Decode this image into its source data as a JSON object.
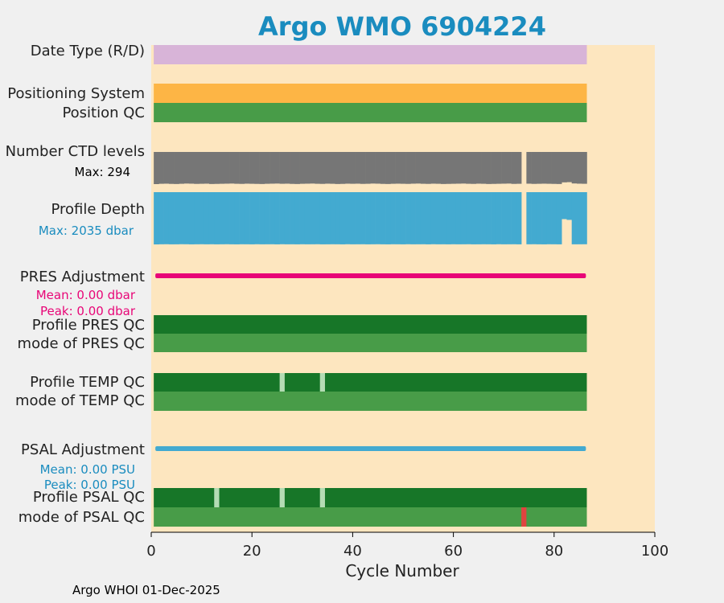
{
  "title": "Argo WMO 6904224",
  "footer": "Argo WHOI 01-Dec-2025",
  "colors": {
    "background": "#f0f0f0",
    "plot_background": "#fde6bf",
    "title": "#1a8cbf",
    "date_type": "#d8b4d8",
    "positioning": "#fdb545",
    "qc_good_dark": "#177628",
    "qc_mode": "#489c48",
    "qc_light": "#b4dcb4",
    "qc_bad": "#e0443f",
    "ctd_levels": "#767676",
    "profile_depth": "#43aad0",
    "pres_adjustment": "#e80677",
    "psal_adjustment": "#43aad0",
    "annotation_depth": "#1a8cbf",
    "annotation_pres": "#e80677",
    "annotation_psal": "#1a8cbf"
  },
  "chart_data": {
    "type": "bar",
    "xlabel": "Cycle Number",
    "xlim": [
      0,
      100
    ],
    "xticks": [
      "0",
      "20",
      "40",
      "60",
      "80",
      "100"
    ],
    "cycles": [
      1,
      86
    ],
    "rows": [
      {
        "label": "Date Type (R/D)",
        "kind": "band",
        "color": "date_type"
      },
      {
        "label": "Positioning System",
        "kind": "band",
        "color": "positioning"
      },
      {
        "label": "Position QC",
        "kind": "band",
        "color": "qc_mode"
      },
      {
        "label": "Number CTD levels",
        "kind": "levels",
        "annotation": "Max: 294",
        "max": 294
      },
      {
        "label": "Profile Depth",
        "kind": "depth",
        "annotation": "Max: 2035 dbar",
        "max": 2035
      },
      {
        "label": "PRES Adjustment",
        "kind": "line",
        "color": "pres_adjustment",
        "mean": "Mean: 0.00 dbar",
        "peak": "Peak: 0.00 dbar"
      },
      {
        "label": "Profile PRES QC",
        "kind": "band",
        "color": "qc_good_dark"
      },
      {
        "label": "mode of PRES QC",
        "kind": "band",
        "color": "qc_mode"
      },
      {
        "label": "Profile TEMP QC",
        "kind": "qcband",
        "color": "qc_good_dark",
        "light_cycles": [
          26,
          34
        ]
      },
      {
        "label": "mode of TEMP QC",
        "kind": "band",
        "color": "qc_mode"
      },
      {
        "label": "PSAL Adjustment",
        "kind": "line",
        "color": "psal_adjustment",
        "mean": "Mean: 0.00 PSU",
        "peak": "Peak: 0.00 PSU"
      },
      {
        "label": "Profile PSAL QC",
        "kind": "qcband",
        "color": "qc_good_dark",
        "light_cycles": [
          13,
          26,
          34
        ]
      },
      {
        "label": "mode of PSAL QC",
        "kind": "qcband",
        "color": "qc_mode",
        "bad_cycles": [
          74
        ]
      }
    ],
    "ctd_levels": [
      294,
      291,
      290,
      292,
      293,
      291,
      289,
      290,
      292,
      291,
      290,
      293,
      292,
      291,
      290,
      289,
      291,
      292,
      290,
      291,
      292,
      293,
      291,
      290,
      289,
      291,
      290,
      292,
      293,
      291,
      290,
      289,
      291,
      292,
      290,
      291,
      293,
      292,
      290,
      291,
      290,
      292,
      291,
      289,
      290,
      292,
      293,
      291,
      290,
      291,
      292,
      290,
      289,
      291,
      292,
      290,
      291,
      293,
      292,
      291,
      290,
      289,
      291,
      292,
      290,
      291,
      293,
      292,
      291,
      290,
      289,
      292,
      291,
      0,
      290,
      292,
      291,
      290,
      291,
      292,
      293,
      278,
      276,
      288,
      290,
      291
    ],
    "profile_depth": [
      2035,
      2030,
      2028,
      2032,
      2031,
      2027,
      2029,
      2033,
      2030,
      2028,
      2031,
      2029,
      2032,
      2030,
      2028,
      2031,
      2033,
      2029,
      2030,
      2032,
      2028,
      2031,
      2030,
      2029,
      2033,
      2028,
      2031,
      2030,
      2032,
      2029,
      2031,
      2030,
      2028,
      2032,
      2031,
      2029,
      2030,
      2033,
      2028,
      2031,
      2030,
      2029,
      2032,
      2030,
      2028,
      2031,
      2033,
      2029,
      2030,
      2032,
      2028,
      2031,
      2030,
      2029,
      2033,
      2028,
      2031,
      2030,
      2032,
      2029,
      2031,
      2030,
      2028,
      2032,
      2031,
      2029,
      2030,
      2033,
      2028,
      2031,
      2030,
      2029,
      2032,
      0,
      2030,
      2028,
      2031,
      2033,
      2029,
      2030,
      2032,
      1050,
      1080,
      2031,
      2030,
      2029
    ],
    "psal_adjustment": 0.0,
    "pres_adjustment": 0.0
  }
}
